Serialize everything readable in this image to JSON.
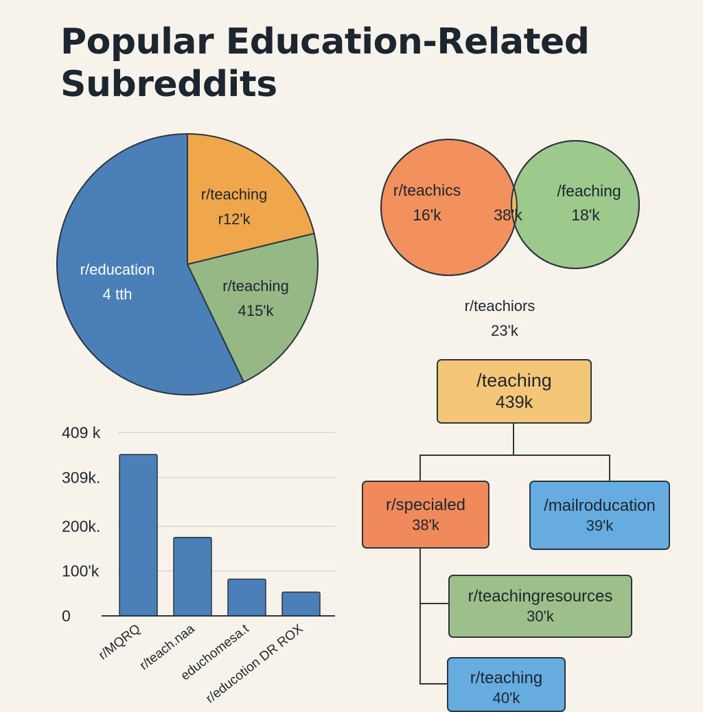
{
  "title": "Popular Education-Related Subreddits",
  "colors": {
    "blue": "#4a7fb8",
    "orange": "#f0a64a",
    "green": "#95b884",
    "venn_left": "#f2905e",
    "venn_right": "#9dc98c",
    "venn_overlap": "#f0bb66",
    "node_yellow": "#f4c778",
    "node_orange": "#f08a5a",
    "node_blue": "#66ace0",
    "node_green": "#9dc08a",
    "bar": "#4a7fb8"
  },
  "chart_data": [
    {
      "type": "pie",
      "slices": [
        {
          "label": "r/education",
          "value_label": "4 tth",
          "share": 0.571,
          "color": "#4a7fb8"
        },
        {
          "label": "r/teaching",
          "value_label": "r12'k",
          "share": 0.212,
          "color": "#f0a64a"
        },
        {
          "label": "r/teaching",
          "value_label": "415'k",
          "share": 0.217,
          "color": "#95b884"
        }
      ]
    },
    {
      "type": "venn",
      "sets": [
        {
          "label": "r/teachics",
          "value_label": "16'k",
          "color": "#f2905e"
        },
        {
          "label": "/feaching",
          "value_label": "18'k",
          "color": "#9dc98c"
        }
      ],
      "overlap_label": "38'k",
      "caption_label": "r/teachiors",
      "caption_value": "23'k"
    },
    {
      "type": "bar",
      "categories": [
        "r/MQRQ",
        "r/teach.naa",
        "educhomesa.t",
        "r/educotion DR ROX"
      ],
      "values": [
        360000,
        175000,
        82000,
        53000
      ],
      "ylim": [
        0,
        409000
      ],
      "yticks": [
        {
          "value": 0,
          "label": "0"
        },
        {
          "value": 100000,
          "label": "100'k"
        },
        {
          "value": 200000,
          "label": "200k."
        },
        {
          "value": 309000,
          "label": "309k."
        },
        {
          "value": 409000,
          "label": "409 k"
        }
      ],
      "grid": true
    },
    {
      "type": "tree",
      "root": {
        "label": "/teaching",
        "value_label": "439k"
      },
      "children": [
        {
          "label": "r/specialed",
          "value_label": "38'k"
        },
        {
          "label": "/mailroducation",
          "value_label": "39'k"
        }
      ],
      "grandchildren": [
        {
          "label": "r/teachingresources",
          "value_label": "30'k"
        },
        {
          "label": "r/teaching",
          "value_label": "40'k"
        }
      ]
    }
  ]
}
